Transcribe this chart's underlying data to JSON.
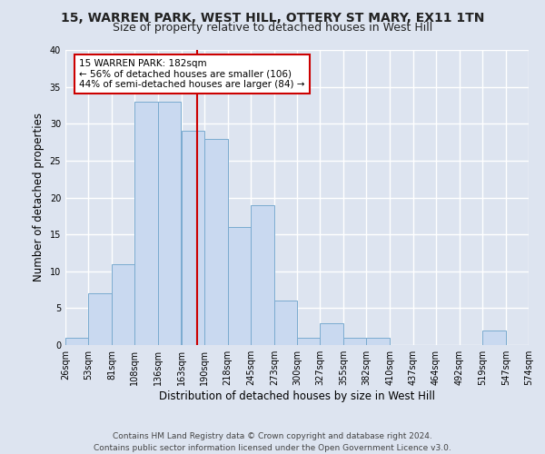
{
  "title": "15, WARREN PARK, WEST HILL, OTTERY ST MARY, EX11 1TN",
  "subtitle": "Size of property relative to detached houses in West Hill",
  "xlabel": "Distribution of detached houses by size in West Hill",
  "ylabel": "Number of detached properties",
  "bin_edges": [
    26,
    53,
    81,
    108,
    136,
    163,
    190,
    218,
    245,
    273,
    300,
    327,
    355,
    382,
    410,
    437,
    464,
    492,
    519,
    547,
    574
  ],
  "counts": [
    1,
    7,
    11,
    33,
    33,
    29,
    28,
    16,
    19,
    6,
    1,
    3,
    1,
    1,
    0,
    0,
    0,
    0,
    2,
    0
  ],
  "bar_facecolor": "#c9d9f0",
  "bar_edgecolor": "#7aabcf",
  "property_line_x": 182,
  "property_line_color": "#cc0000",
  "annotation_title": "15 WARREN PARK: 182sqm",
  "annotation_line1": "← 56% of detached houses are smaller (106)",
  "annotation_line2": "44% of semi-detached houses are larger (84) →",
  "annotation_box_edgecolor": "#cc0000",
  "annotation_box_facecolor": "#ffffff",
  "ylim": [
    0,
    40
  ],
  "yticks": [
    0,
    5,
    10,
    15,
    20,
    25,
    30,
    35,
    40
  ],
  "tick_labels": [
    "26sqm",
    "53sqm",
    "81sqm",
    "108sqm",
    "136sqm",
    "163sqm",
    "190sqm",
    "218sqm",
    "245sqm",
    "273sqm",
    "300sqm",
    "327sqm",
    "355sqm",
    "382sqm",
    "410sqm",
    "437sqm",
    "464sqm",
    "492sqm",
    "519sqm",
    "547sqm",
    "574sqm"
  ],
  "footer_line1": "Contains HM Land Registry data © Crown copyright and database right 2024.",
  "footer_line2": "Contains public sector information licensed under the Open Government Licence v3.0.",
  "background_color": "#dde4f0",
  "plot_background_color": "#dde4f0",
  "grid_color": "#ffffff",
  "title_fontsize": 10,
  "subtitle_fontsize": 9,
  "axis_label_fontsize": 8.5,
  "tick_fontsize": 7,
  "footer_fontsize": 6.5,
  "annotation_fontsize": 7.5
}
